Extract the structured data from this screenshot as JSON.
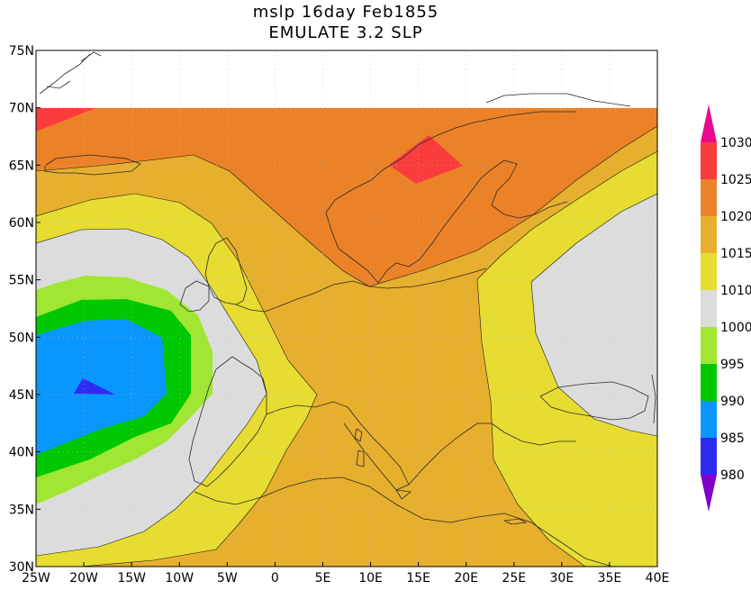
{
  "title_line_1": "mslp 16day Feb1855",
  "title_line_2": "EMULATE 3.2 SLP",
  "chart_data": {
    "type": "heatmap",
    "title": "mslp 16day Feb1855",
    "subtitle": "EMULATE 3.2 SLP",
    "x_ticks": [
      "25W",
      "20W",
      "15W",
      "10W",
      "5W",
      "0",
      "5E",
      "10E",
      "15E",
      "20E",
      "25E",
      "30E",
      "35E",
      "40E"
    ],
    "y_ticks": [
      "30N",
      "35N",
      "40N",
      "45N",
      "50N",
      "55N",
      "60N",
      "65N",
      "70N",
      "75N"
    ],
    "xlim": [
      -25,
      40
    ],
    "ylim": [
      30,
      75
    ],
    "data_top_lat": 70,
    "grid": "dotted",
    "colorbar": {
      "levels": [
        "980",
        "985",
        "990",
        "995",
        "1000",
        "1010",
        "1015",
        "1020",
        "1025",
        "1030"
      ],
      "colors": [
        "#8000c8",
        "#2c2cf0",
        "#0a96ff",
        "#00c800",
        "#a0e632",
        "#dcdcdc",
        "#e6dc32",
        "#e6af2d",
        "#eb8228",
        "#fa3c3c",
        "#eb0a8c"
      ],
      "extend": "both"
    },
    "highs": [
      {
        "value": 1025,
        "lon": 15,
        "lat": 65.5
      },
      {
        "value": 1025,
        "lon": -24,
        "lat": 69.5
      }
    ],
    "lows": [
      {
        "value": 980,
        "lon": -19.5,
        "lat": 45.5
      }
    ]
  }
}
